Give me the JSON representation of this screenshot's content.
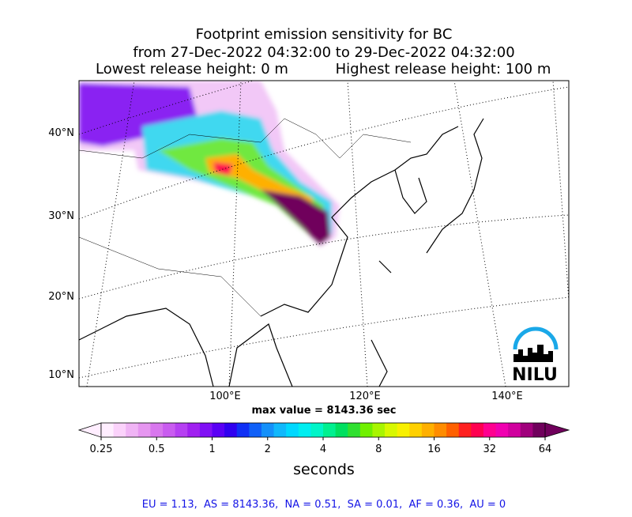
{
  "title": [
    "Footprint emission sensitivity for BC",
    "from 27-Dec-2022 04:32:00 to 29-Dec-2022 04:32:00"
  ],
  "release": {
    "lowest": "Lowest release height: 0 m",
    "highest": "Highest release height: 100 m"
  },
  "map": {
    "lat_labels": [
      "40°N",
      "30°N",
      "20°N",
      "10°N"
    ],
    "lon_labels": [
      "100°E",
      "120°E",
      "140°E"
    ],
    "logo": "NILU"
  },
  "max_value": "max value = 8143.36 sec",
  "colorbar": {
    "label": "seconds",
    "log": true,
    "lim": [
      0.25,
      64
    ],
    "ticks": [
      0.25,
      0.5,
      1,
      2,
      4,
      8,
      16,
      32,
      64
    ],
    "colors": [
      "#ffeeff",
      "#fbd2fb",
      "#f0b4f5",
      "#e696f0",
      "#d877ee",
      "#c95cf0",
      "#b640f2",
      "#a020f0",
      "#8010f5",
      "#5a00f5",
      "#3000f0",
      "#1030f5",
      "#1060f8",
      "#1490fa",
      "#10b8fc",
      "#00d8ff",
      "#00eef0",
      "#00f5c8",
      "#00f090",
      "#00e060",
      "#30e030",
      "#70f000",
      "#a8f500",
      "#d8f800",
      "#f8f000",
      "#ffd000",
      "#ffb000",
      "#ff8c00",
      "#ff6000",
      "#ff2020",
      "#ff0050",
      "#ff0090",
      "#f000b0",
      "#d0009e",
      "#a0007c",
      "#70005c"
    ]
  },
  "stats": "EU = 1.13,  AS = 8143.36,  NA = 0.51,  SA = 0.01,  AF = 0.36,  AU = 0"
}
